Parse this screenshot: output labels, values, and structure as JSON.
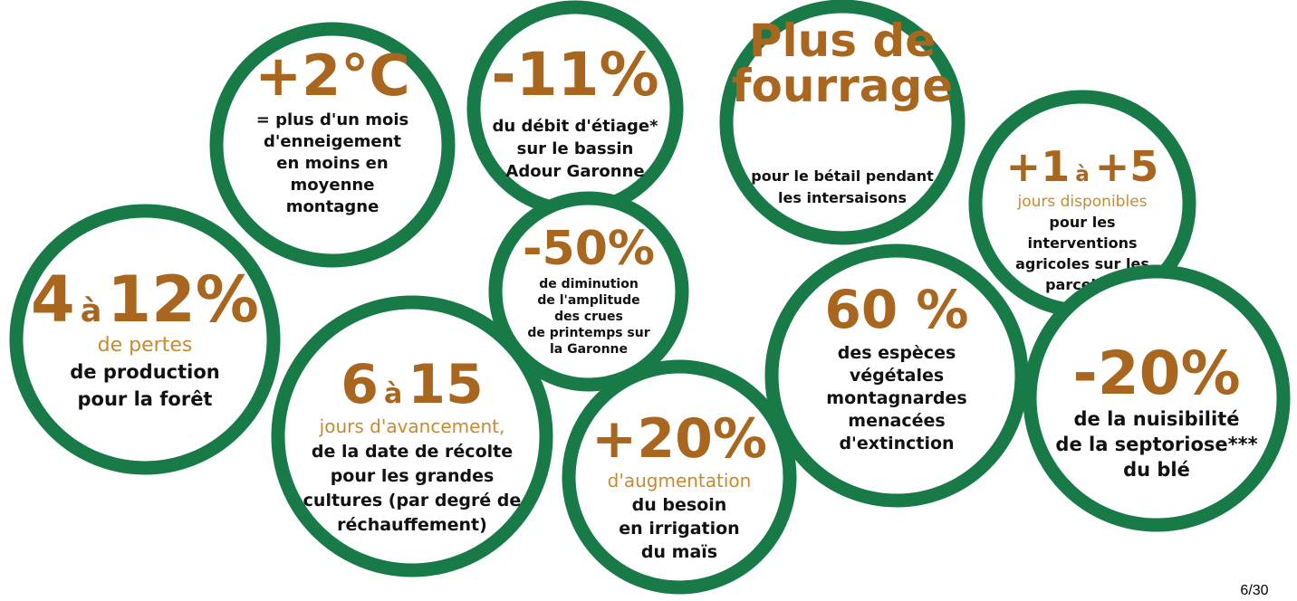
{
  "circles": [
    {
      "headline": [
        "+2°C"
      ],
      "lines": [
        "= plus d'un mois",
        "d'enneigement",
        "en moins en",
        "moyenne",
        "montagne"
      ]
    },
    {
      "headline": [
        "-11%"
      ],
      "lines": [
        "du débit d'étiage*",
        "sur le bassin",
        "Adour Garonne"
      ]
    },
    {
      "headline": [
        "Plus de",
        "fourrage"
      ],
      "lines": [
        "pour le bétail pendant",
        "les intersaisons"
      ]
    },
    {
      "headline": [
        "+1",
        "à",
        "+5"
      ],
      "highlight": "jours disponibles",
      "lines": [
        "pour les",
        "interventions",
        "agricoles sur les",
        "parcelles"
      ]
    },
    {
      "headline": [
        "4",
        "à",
        "12%"
      ],
      "highlight": "de pertes",
      "lines": [
        "de production",
        "pour la forêt"
      ]
    },
    {
      "headline": [
        "-50%"
      ],
      "lines": [
        "de diminution",
        "de l'amplitude",
        "des crues",
        "de printemps sur",
        "la Garonne"
      ]
    },
    {
      "headline": [
        "6",
        "à",
        "15"
      ],
      "highlight": "jours d'avancement,",
      "lines": [
        "de la date de récolte",
        "pour les grandes",
        "cultures (par degré de",
        "réchauffement)"
      ]
    },
    {
      "headline": [
        "+20%"
      ],
      "highlight": "d'augmentation",
      "lines": [
        "du besoin",
        "en irrigation",
        "du maïs"
      ]
    },
    {
      "headline": [
        "60 %"
      ],
      "lines": [
        "des espèces",
        "végétales",
        "montagnardes",
        "menacées",
        "d'extinction"
      ]
    },
    {
      "headline": [
        "-20%"
      ],
      "lines": [
        "de la nuisibilité",
        "de la septoriose***",
        "du blé"
      ]
    }
  ],
  "page_number": "6/30"
}
